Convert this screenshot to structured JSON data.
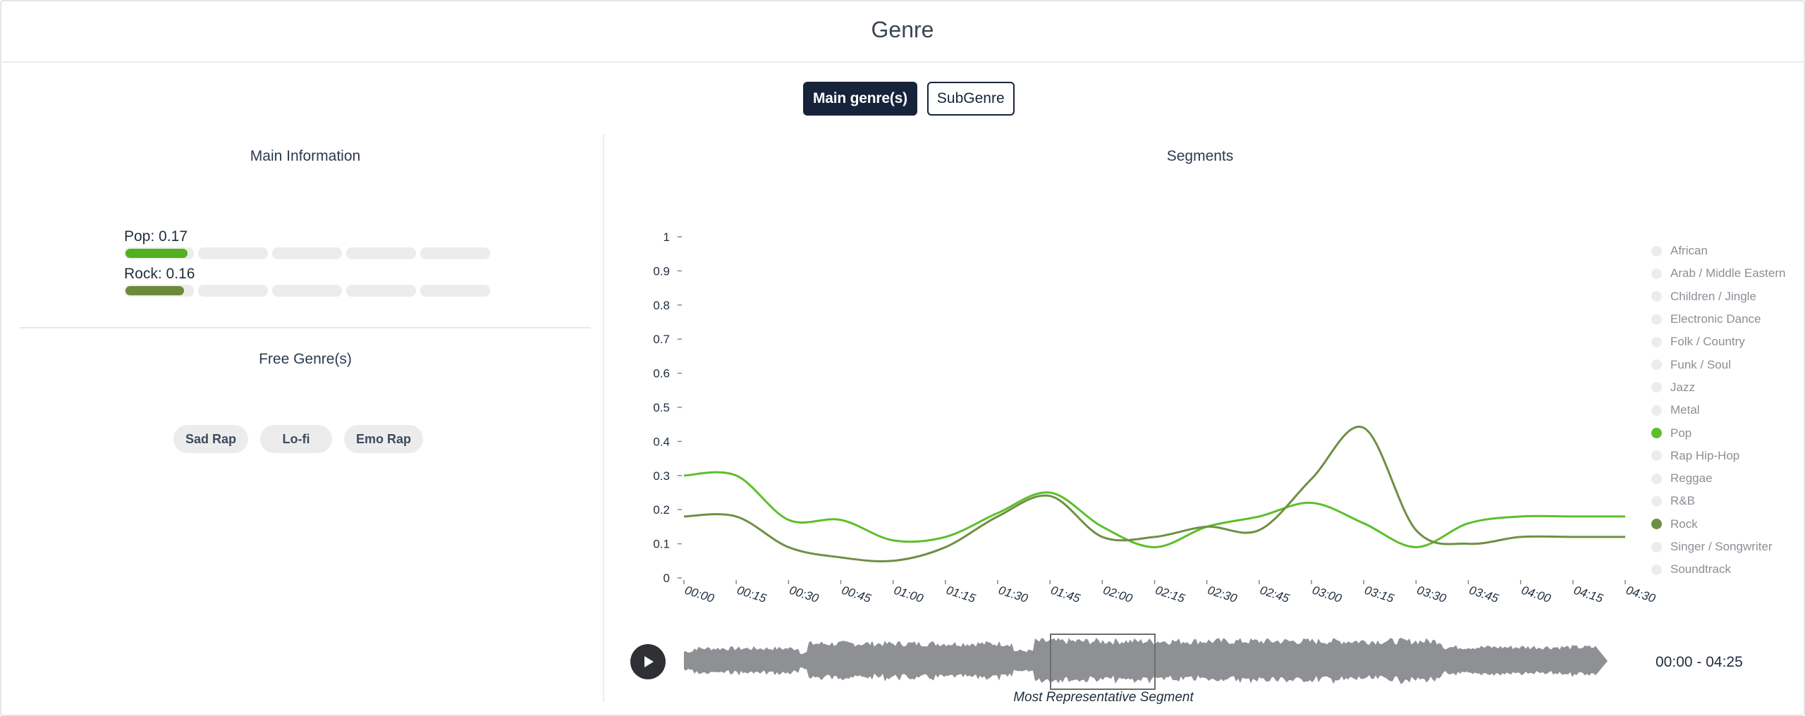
{
  "header": {
    "title": "Genre"
  },
  "toggles": {
    "main": "Main genre(s)",
    "sub": "SubGenre"
  },
  "main_info": {
    "title": "Main Information",
    "genres": [
      {
        "label": "Pop: 0.17",
        "value": 0.17,
        "color": "#52b11f"
      },
      {
        "label": "Rock: 0.16",
        "value": 0.16,
        "color": "#6b8a3a"
      }
    ]
  },
  "free_genres": {
    "title": "Free Genre(s)",
    "tags": [
      "Sad Rap",
      "Lo-fi",
      "Emo Rap"
    ]
  },
  "segments": {
    "title": "Segments"
  },
  "legend": [
    {
      "label": "African",
      "color": "#ececec"
    },
    {
      "label": "Arab / Middle Eastern",
      "color": "#ececec"
    },
    {
      "label": "Children / Jingle",
      "color": "#ececec"
    },
    {
      "label": "Electronic Dance",
      "color": "#ececec"
    },
    {
      "label": "Folk / Country",
      "color": "#ececec"
    },
    {
      "label": "Funk / Soul",
      "color": "#ececec"
    },
    {
      "label": "Jazz",
      "color": "#ececec"
    },
    {
      "label": "Metal",
      "color": "#ececec"
    },
    {
      "label": "Pop",
      "color": "#5cbf2a"
    },
    {
      "label": "Rap Hip-Hop",
      "color": "#ececec"
    },
    {
      "label": "Reggae",
      "color": "#ececec"
    },
    {
      "label": "R&B",
      "color": "#ececec"
    },
    {
      "label": "Rock",
      "color": "#6f8f45"
    },
    {
      "label": "Singer / Songwriter",
      "color": "#ececec"
    },
    {
      "label": "Soundtrack",
      "color": "#ececec"
    }
  ],
  "player": {
    "time_range": "00:00 - 04:25",
    "segment_caption": "Most Representative Segment"
  },
  "chart_data": {
    "type": "line",
    "x": [
      "00:00",
      "00:15",
      "00:30",
      "00:45",
      "01:00",
      "01:15",
      "01:30",
      "01:45",
      "02:00",
      "02:15",
      "02:30",
      "02:45",
      "03:00",
      "03:15",
      "03:30",
      "03:45",
      "04:00",
      "04:15",
      "04:30"
    ],
    "ylim": [
      0,
      1
    ],
    "yticks": [
      "0",
      "0.1",
      "0.2",
      "0.3",
      "0.4",
      "0.5",
      "0.6",
      "0.7",
      "0.8",
      "0.9",
      "1"
    ],
    "series": [
      {
        "name": "Pop",
        "color": "#5cbf2a",
        "values": [
          0.3,
          0.3,
          0.17,
          0.17,
          0.11,
          0.12,
          0.19,
          0.25,
          0.15,
          0.09,
          0.15,
          0.18,
          0.22,
          0.16,
          0.09,
          0.16,
          0.18,
          0.18,
          0.18
        ]
      },
      {
        "name": "Rock",
        "color": "#6f8f45",
        "values": [
          0.18,
          0.18,
          0.09,
          0.06,
          0.05,
          0.09,
          0.18,
          0.24,
          0.12,
          0.12,
          0.15,
          0.14,
          0.29,
          0.44,
          0.14,
          0.1,
          0.12,
          0.12,
          0.12
        ]
      }
    ],
    "legend_position": "right"
  }
}
